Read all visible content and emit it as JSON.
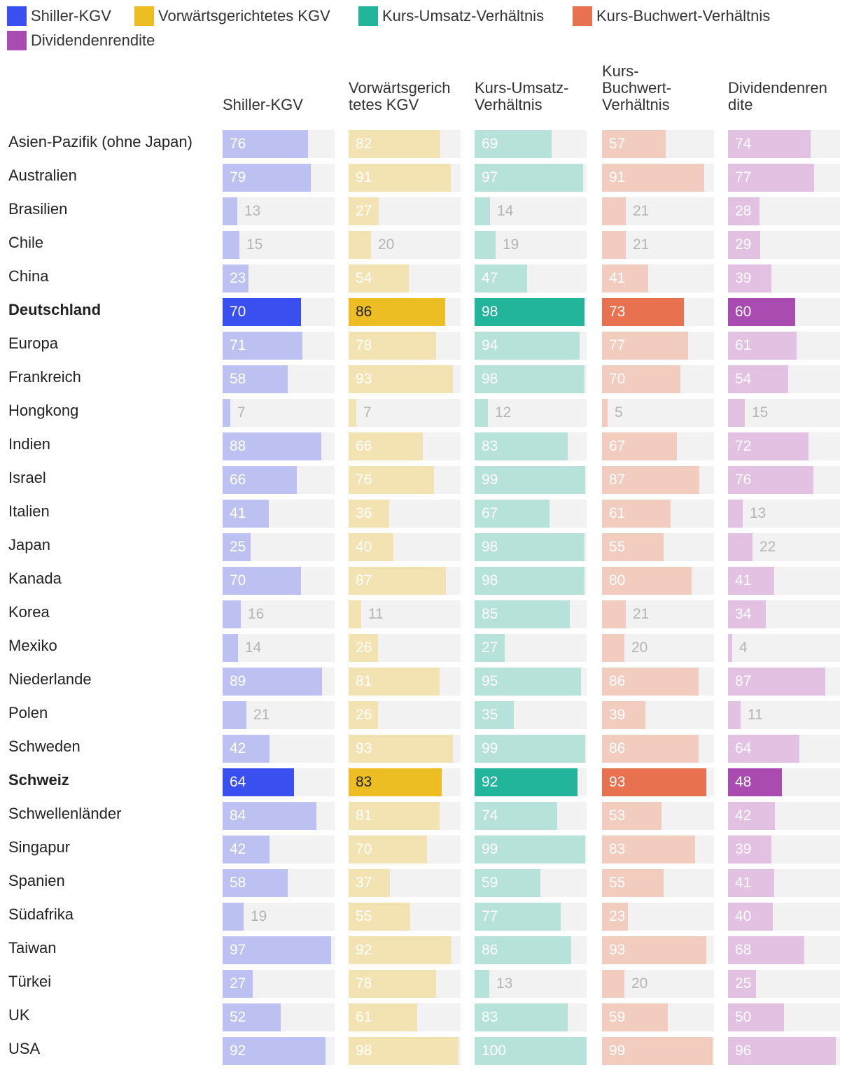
{
  "chart_data": {
    "type": "bar",
    "legend": [
      {
        "name": "Shiller-KGV",
        "color": "#3a4ff0"
      },
      {
        "name": "Vorwärtsgerichtetes KGV",
        "color": "#edbd24"
      },
      {
        "name": "Kurs-Umsatz-Verhältnis",
        "color": "#22b59c"
      },
      {
        "name": "Kurs-Buchwert-Verhältnis",
        "color": "#e8714f"
      },
      {
        "name": "Dividendenrendite",
        "color": "#a94bb0"
      }
    ],
    "columns": [
      {
        "header": [
          "Shiller-KGV"
        ],
        "light": "#bcc1f2",
        "dark": "#3a4ff0",
        "dark_text": "#ffffff"
      },
      {
        "header": [
          "Vorwärtsgerich",
          "tetes KGV"
        ],
        "light": "#f4e3b2",
        "dark": "#edbd24",
        "dark_text": "#222222"
      },
      {
        "header": [
          "Kurs-Umsatz-",
          "Verhältnis"
        ],
        "light": "#b6e2da",
        "dark": "#22b59c",
        "dark_text": "#ffffff"
      },
      {
        "header": [
          "Kurs-",
          "Buchwert-",
          "Verhältnis"
        ],
        "light": "#f2ccbf",
        "dark": "#e8714f",
        "dark_text": "#ffffff"
      },
      {
        "header": [
          "Dividendenren",
          "dite"
        ],
        "light": "#e3c1e2",
        "dark": "#a94bb0",
        "dark_text": "#ffffff"
      }
    ],
    "ylim": [
      0,
      100
    ],
    "rows": [
      {
        "label": "Asien-Pazifik (ohne Japan)",
        "values": [
          76,
          82,
          69,
          57,
          74
        ],
        "highlight": false
      },
      {
        "label": "Australien",
        "values": [
          79,
          91,
          97,
          91,
          77
        ],
        "highlight": false
      },
      {
        "label": "Brasilien",
        "values": [
          13,
          27,
          14,
          21,
          28
        ],
        "highlight": false
      },
      {
        "label": "Chile",
        "values": [
          15,
          20,
          19,
          21,
          29
        ],
        "highlight": false
      },
      {
        "label": "China",
        "values": [
          23,
          54,
          47,
          41,
          39
        ],
        "highlight": false
      },
      {
        "label": "Deutschland",
        "values": [
          70,
          86,
          98,
          73,
          60
        ],
        "highlight": true
      },
      {
        "label": "Europa",
        "values": [
          71,
          78,
          94,
          77,
          61
        ],
        "highlight": false
      },
      {
        "label": "Frankreich",
        "values": [
          58,
          93,
          98,
          70,
          54
        ],
        "highlight": false
      },
      {
        "label": "Hongkong",
        "values": [
          7,
          7,
          12,
          5,
          15
        ],
        "highlight": false
      },
      {
        "label": "Indien",
        "values": [
          88,
          66,
          83,
          67,
          72
        ],
        "highlight": false
      },
      {
        "label": "Israel",
        "values": [
          66,
          76,
          99,
          87,
          76
        ],
        "highlight": false
      },
      {
        "label": "Italien",
        "values": [
          41,
          36,
          67,
          61,
          13
        ],
        "highlight": false
      },
      {
        "label": "Japan",
        "values": [
          25,
          40,
          98,
          55,
          22
        ],
        "highlight": false
      },
      {
        "label": "Kanada",
        "values": [
          70,
          87,
          98,
          80,
          41
        ],
        "highlight": false
      },
      {
        "label": "Korea",
        "values": [
          16,
          11,
          85,
          21,
          34
        ],
        "highlight": false
      },
      {
        "label": "Mexiko",
        "values": [
          14,
          26,
          27,
          20,
          4
        ],
        "highlight": false
      },
      {
        "label": "Niederlande",
        "values": [
          89,
          81,
          95,
          86,
          87
        ],
        "highlight": false
      },
      {
        "label": "Polen",
        "values": [
          21,
          26,
          35,
          39,
          11
        ],
        "highlight": false
      },
      {
        "label": "Schweden",
        "values": [
          42,
          93,
          99,
          86,
          64
        ],
        "highlight": false
      },
      {
        "label": "Schweiz",
        "values": [
          64,
          83,
          92,
          93,
          48
        ],
        "highlight": true
      },
      {
        "label": "Schwellenländer",
        "values": [
          84,
          81,
          74,
          53,
          42
        ],
        "highlight": false
      },
      {
        "label": "Singapur",
        "values": [
          42,
          70,
          99,
          83,
          39
        ],
        "highlight": false
      },
      {
        "label": "Spanien",
        "values": [
          58,
          37,
          59,
          55,
          41
        ],
        "highlight": false
      },
      {
        "label": "Südafrika",
        "values": [
          19,
          55,
          77,
          23,
          40
        ],
        "highlight": false
      },
      {
        "label": "Taiwan",
        "values": [
          97,
          92,
          86,
          93,
          68
        ],
        "highlight": false
      },
      {
        "label": "Türkei",
        "values": [
          27,
          78,
          13,
          20,
          25
        ],
        "highlight": false
      },
      {
        "label": "UK",
        "values": [
          52,
          61,
          83,
          59,
          50
        ],
        "highlight": false
      },
      {
        "label": "USA",
        "values": [
          92,
          98,
          100,
          99,
          96
        ],
        "highlight": false
      }
    ]
  }
}
